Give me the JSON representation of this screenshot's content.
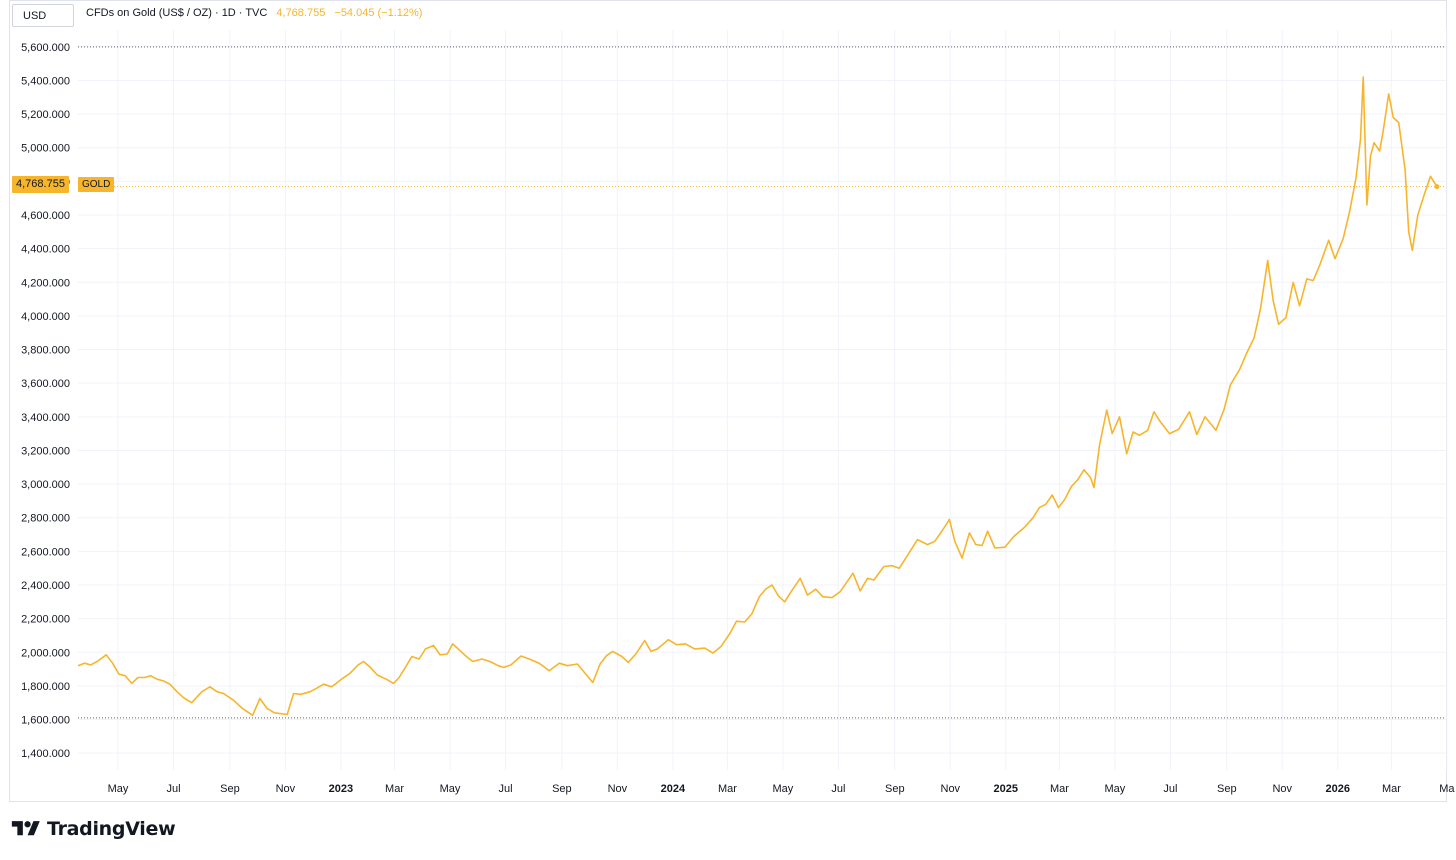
{
  "header": {
    "currency_button": "USD",
    "symbol_description": "CFDs on Gold (US$ / OZ) · 1D · TVC",
    "last_price": "4,768.755",
    "change": "−54.045 (−1.12%)"
  },
  "price_tag": {
    "value": "4,768.755",
    "symbol": "GOLD"
  },
  "brand": {
    "name": "TradingView"
  },
  "colors": {
    "line": "#f7b52c",
    "grid": "#f0f3fa",
    "text": "#131722"
  },
  "chart_data": {
    "type": "line",
    "y_ticks": [
      "1,400.000",
      "1,600.000",
      "1,800.000",
      "2,000.000",
      "2,200.000",
      "2,400.000",
      "2,600.000",
      "2,800.000",
      "3,000.000",
      "3,200.000",
      "3,400.000",
      "3,600.000",
      "3,800.000",
      "4,000.000",
      "4,200.000",
      "4,400.000",
      "4,600.000",
      "4,800.000",
      "5,000.000",
      "5,200.000",
      "5,400.000",
      "5,600.000"
    ],
    "ylim": [
      1300,
      5700
    ],
    "xlim": [
      "2022-03-18",
      "2026-04-30"
    ],
    "x_ticks": [
      {
        "label": "May",
        "date": "2022-05-01",
        "bold": false
      },
      {
        "label": "Jul",
        "date": "2022-07-01",
        "bold": false
      },
      {
        "label": "Sep",
        "date": "2022-09-01",
        "bold": false
      },
      {
        "label": "Nov",
        "date": "2022-11-01",
        "bold": false
      },
      {
        "label": "2023",
        "date": "2023-01-01",
        "bold": true
      },
      {
        "label": "Mar",
        "date": "2023-03-01",
        "bold": false
      },
      {
        "label": "May",
        "date": "2023-05-01",
        "bold": false
      },
      {
        "label": "Jul",
        "date": "2023-07-01",
        "bold": false
      },
      {
        "label": "Sep",
        "date": "2023-09-01",
        "bold": false
      },
      {
        "label": "Nov",
        "date": "2023-11-01",
        "bold": false
      },
      {
        "label": "2024",
        "date": "2024-01-01",
        "bold": true
      },
      {
        "label": "Mar",
        "date": "2024-03-01",
        "bold": false
      },
      {
        "label": "May",
        "date": "2024-05-01",
        "bold": false
      },
      {
        "label": "Jul",
        "date": "2024-07-01",
        "bold": false
      },
      {
        "label": "Sep",
        "date": "2024-09-01",
        "bold": false
      },
      {
        "label": "Nov",
        "date": "2024-11-01",
        "bold": false
      },
      {
        "label": "2025",
        "date": "2025-01-01",
        "bold": true
      },
      {
        "label": "Mar",
        "date": "2025-03-01",
        "bold": false
      },
      {
        "label": "May",
        "date": "2025-05-01",
        "bold": false
      },
      {
        "label": "Jul",
        "date": "2025-07-01",
        "bold": false
      },
      {
        "label": "Sep",
        "date": "2025-09-01",
        "bold": false
      },
      {
        "label": "Nov",
        "date": "2025-11-01",
        "bold": false
      },
      {
        "label": "2026",
        "date": "2026-01-01",
        "bold": true
      },
      {
        "label": "Mar",
        "date": "2026-03-01",
        "bold": false
      },
      {
        "label": "Ma",
        "date": "2026-05-01",
        "bold": false
      }
    ],
    "hlines": [
      5600,
      1610
    ],
    "last_value": 4768.755,
    "series": [
      {
        "points": [
          [
            "2022-03-18",
            1920
          ],
          [
            "2022-03-25",
            1935
          ],
          [
            "2022-04-01",
            1925
          ],
          [
            "2022-04-08",
            1945
          ],
          [
            "2022-04-18",
            1985
          ],
          [
            "2022-04-25",
            1935
          ],
          [
            "2022-05-02",
            1870
          ],
          [
            "2022-05-09",
            1860
          ],
          [
            "2022-05-16",
            1815
          ],
          [
            "2022-05-23",
            1850
          ],
          [
            "2022-05-30",
            1850
          ],
          [
            "2022-06-06",
            1860
          ],
          [
            "2022-06-13",
            1840
          ],
          [
            "2022-06-20",
            1830
          ],
          [
            "2022-06-27",
            1810
          ],
          [
            "2022-07-05",
            1765
          ],
          [
            "2022-07-12",
            1730
          ],
          [
            "2022-07-21",
            1700
          ],
          [
            "2022-08-01",
            1765
          ],
          [
            "2022-08-10",
            1795
          ],
          [
            "2022-08-18",
            1765
          ],
          [
            "2022-08-25",
            1755
          ],
          [
            "2022-09-05",
            1715
          ],
          [
            "2022-09-15",
            1665
          ],
          [
            "2022-09-26",
            1625
          ],
          [
            "2022-10-04",
            1725
          ],
          [
            "2022-10-12",
            1665
          ],
          [
            "2022-10-20",
            1640
          ],
          [
            "2022-11-03",
            1630
          ],
          [
            "2022-11-10",
            1755
          ],
          [
            "2022-11-18",
            1750
          ],
          [
            "2022-11-28",
            1765
          ],
          [
            "2022-12-05",
            1785
          ],
          [
            "2022-12-13",
            1810
          ],
          [
            "2022-12-22",
            1795
          ],
          [
            "2023-01-03",
            1845
          ],
          [
            "2023-01-11",
            1875
          ],
          [
            "2023-01-20",
            1925
          ],
          [
            "2023-01-26",
            1945
          ],
          [
            "2023-02-02",
            1912
          ],
          [
            "2023-02-10",
            1865
          ],
          [
            "2023-02-20",
            1840
          ],
          [
            "2023-02-28",
            1815
          ],
          [
            "2023-03-06",
            1850
          ],
          [
            "2023-03-13",
            1910
          ],
          [
            "2023-03-20",
            1975
          ],
          [
            "2023-03-28",
            1960
          ],
          [
            "2023-04-04",
            2020
          ],
          [
            "2023-04-13",
            2040
          ],
          [
            "2023-04-20",
            1985
          ],
          [
            "2023-04-28",
            1990
          ],
          [
            "2023-05-04",
            2050
          ],
          [
            "2023-05-11",
            2015
          ],
          [
            "2023-05-19",
            1975
          ],
          [
            "2023-05-26",
            1945
          ],
          [
            "2023-06-05",
            1960
          ],
          [
            "2023-06-14",
            1945
          ],
          [
            "2023-06-23",
            1920
          ],
          [
            "2023-06-29",
            1910
          ],
          [
            "2023-07-07",
            1925
          ],
          [
            "2023-07-18",
            1978
          ],
          [
            "2023-07-27",
            1960
          ],
          [
            "2023-08-07",
            1935
          ],
          [
            "2023-08-18",
            1890
          ],
          [
            "2023-08-29",
            1935
          ],
          [
            "2023-09-07",
            1920
          ],
          [
            "2023-09-18",
            1930
          ],
          [
            "2023-09-28",
            1865
          ],
          [
            "2023-10-05",
            1820
          ],
          [
            "2023-10-13",
            1930
          ],
          [
            "2023-10-20",
            1980
          ],
          [
            "2023-10-27",
            2005
          ],
          [
            "2023-11-06",
            1975
          ],
          [
            "2023-11-13",
            1940
          ],
          [
            "2023-11-22",
            1995
          ],
          [
            "2023-12-01",
            2070
          ],
          [
            "2023-12-08",
            2005
          ],
          [
            "2023-12-15",
            2020
          ],
          [
            "2023-12-27",
            2075
          ],
          [
            "2024-01-05",
            2045
          ],
          [
            "2024-01-15",
            2050
          ],
          [
            "2024-01-25",
            2020
          ],
          [
            "2024-02-05",
            2025
          ],
          [
            "2024-02-14",
            1995
          ],
          [
            "2024-02-23",
            2035
          ],
          [
            "2024-03-04",
            2115
          ],
          [
            "2024-03-11",
            2185
          ],
          [
            "2024-03-20",
            2180
          ],
          [
            "2024-03-28",
            2230
          ],
          [
            "2024-04-05",
            2330
          ],
          [
            "2024-04-12",
            2375
          ],
          [
            "2024-04-19",
            2400
          ],
          [
            "2024-04-26",
            2335
          ],
          [
            "2024-05-03",
            2300
          ],
          [
            "2024-05-10",
            2360
          ],
          [
            "2024-05-20",
            2440
          ],
          [
            "2024-05-28",
            2340
          ],
          [
            "2024-06-06",
            2375
          ],
          [
            "2024-06-14",
            2330
          ],
          [
            "2024-06-24",
            2325
          ],
          [
            "2024-07-03",
            2360
          ],
          [
            "2024-07-17",
            2470
          ],
          [
            "2024-07-25",
            2365
          ],
          [
            "2024-08-02",
            2440
          ],
          [
            "2024-08-09",
            2430
          ],
          [
            "2024-08-20",
            2510
          ],
          [
            "2024-08-29",
            2515
          ],
          [
            "2024-09-06",
            2500
          ],
          [
            "2024-09-16",
            2585
          ],
          [
            "2024-09-26",
            2670
          ],
          [
            "2024-10-07",
            2640
          ],
          [
            "2024-10-15",
            2660
          ],
          [
            "2024-10-24",
            2730
          ],
          [
            "2024-10-31",
            2790
          ],
          [
            "2024-11-06",
            2660
          ],
          [
            "2024-11-14",
            2560
          ],
          [
            "2024-11-22",
            2710
          ],
          [
            "2024-11-29",
            2640
          ],
          [
            "2024-12-06",
            2635
          ],
          [
            "2024-12-12",
            2720
          ],
          [
            "2024-12-20",
            2620
          ],
          [
            "2024-12-31",
            2625
          ],
          [
            "2025-01-10",
            2690
          ],
          [
            "2025-01-21",
            2740
          ],
          [
            "2025-01-31",
            2800
          ],
          [
            "2025-02-07",
            2860
          ],
          [
            "2025-02-14",
            2880
          ],
          [
            "2025-02-21",
            2935
          ],
          [
            "2025-02-28",
            2860
          ],
          [
            "2025-03-07",
            2910
          ],
          [
            "2025-03-14",
            2985
          ],
          [
            "2025-03-21",
            3025
          ],
          [
            "2025-03-28",
            3085
          ],
          [
            "2025-04-04",
            3040
          ],
          [
            "2025-04-08",
            2980
          ],
          [
            "2025-04-14",
            3230
          ],
          [
            "2025-04-22",
            3440
          ],
          [
            "2025-04-28",
            3300
          ],
          [
            "2025-05-06",
            3400
          ],
          [
            "2025-05-14",
            3180
          ],
          [
            "2025-05-21",
            3310
          ],
          [
            "2025-05-28",
            3290
          ],
          [
            "2025-06-06",
            3320
          ],
          [
            "2025-06-13",
            3430
          ],
          [
            "2025-06-20",
            3370
          ],
          [
            "2025-06-30",
            3300
          ],
          [
            "2025-07-10",
            3325
          ],
          [
            "2025-07-22",
            3430
          ],
          [
            "2025-07-30",
            3295
          ],
          [
            "2025-08-08",
            3400
          ],
          [
            "2025-08-20",
            3320
          ],
          [
            "2025-08-29",
            3445
          ],
          [
            "2025-09-05",
            3590
          ],
          [
            "2025-09-15",
            3680
          ],
          [
            "2025-09-23",
            3780
          ],
          [
            "2025-10-01",
            3870
          ],
          [
            "2025-10-08",
            4040
          ],
          [
            "2025-10-16",
            4330
          ],
          [
            "2025-10-22",
            4090
          ],
          [
            "2025-10-28",
            3950
          ],
          [
            "2025-11-05",
            3990
          ],
          [
            "2025-11-13",
            4200
          ],
          [
            "2025-11-20",
            4060
          ],
          [
            "2025-11-28",
            4220
          ],
          [
            "2025-12-05",
            4210
          ],
          [
            "2025-12-12",
            4300
          ],
          [
            "2025-12-22",
            4450
          ],
          [
            "2025-12-29",
            4340
          ],
          [
            "2026-01-07",
            4460
          ],
          [
            "2026-01-14",
            4620
          ],
          [
            "2026-01-21",
            4820
          ],
          [
            "2026-01-26",
            5050
          ],
          [
            "2026-01-29",
            5420
          ],
          [
            "2026-02-02",
            4660
          ],
          [
            "2026-02-06",
            4950
          ],
          [
            "2026-02-10",
            5030
          ],
          [
            "2026-02-16",
            4980
          ],
          [
            "2026-02-20",
            5100
          ],
          [
            "2026-02-26",
            5320
          ],
          [
            "2026-03-03",
            5180
          ],
          [
            "2026-03-09",
            5150
          ],
          [
            "2026-03-16",
            4870
          ],
          [
            "2026-03-20",
            4500
          ],
          [
            "2026-03-24",
            4390
          ],
          [
            "2026-03-30",
            4600
          ],
          [
            "2026-04-06",
            4720
          ],
          [
            "2026-04-13",
            4830
          ],
          [
            "2026-04-20",
            4768.755
          ]
        ]
      }
    ]
  }
}
